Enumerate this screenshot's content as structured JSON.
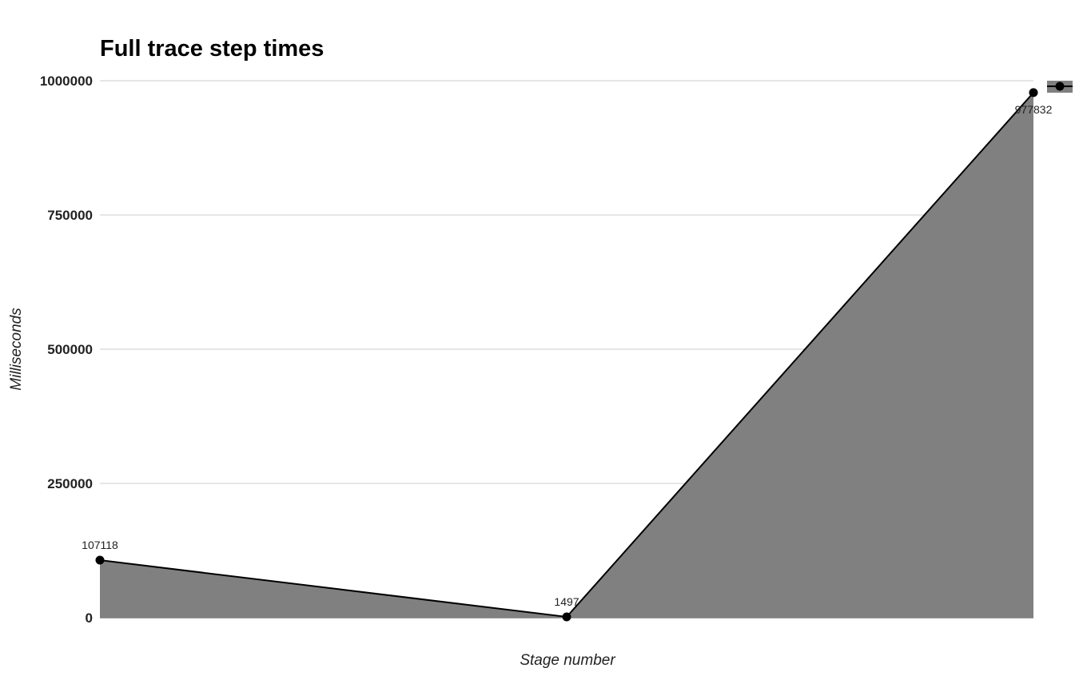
{
  "chart_data": {
    "type": "area",
    "title": "Full trace step times",
    "xlabel": "Stage number",
    "ylabel": "Milliseconds",
    "x": [
      "",
      "",
      ""
    ],
    "series": [
      {
        "values": [
          107118,
          1497,
          977832
        ],
        "data_labels": [
          "107118",
          "1497",
          "977832"
        ]
      }
    ],
    "ylim": [
      0,
      1000000
    ],
    "yticks": [
      0,
      250000,
      500000,
      750000,
      1000000
    ],
    "ytick_labels": [
      "0",
      "250000",
      "500000",
      "750000",
      "1000000"
    ],
    "grid": true,
    "legend": {
      "visible": true,
      "position": "top-right"
    },
    "colors": {
      "area": "#808080",
      "line": "#000000",
      "point": "#000000",
      "grid": "#cccccc"
    }
  }
}
